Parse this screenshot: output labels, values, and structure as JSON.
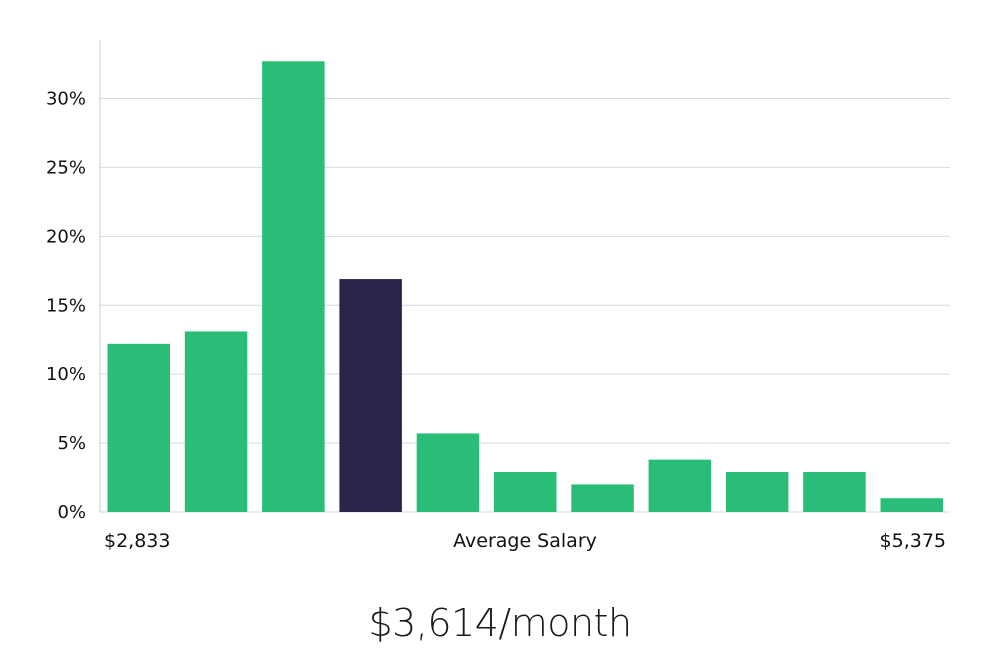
{
  "chart_data": {
    "type": "bar",
    "x_start_label": "$2,833",
    "x_center_label": "Average Salary",
    "x_end_label": "$5,375",
    "values": [
      12.2,
      13.1,
      32.7,
      16.9,
      5.7,
      2.9,
      2.0,
      3.8,
      2.9,
      2.9,
      1.0
    ],
    "highlight_index": 3,
    "ylim": [
      0,
      34
    ],
    "yticks": [
      "0%",
      "5%",
      "10%",
      "15%",
      "20%",
      "25%",
      "30%"
    ],
    "grid": true,
    "colors": {
      "bar": "#2abd78",
      "highlight": "#29264a",
      "grid": "#d9d9d9",
      "axis": "#cccccc"
    }
  },
  "summary": {
    "salary": "$3,614/month"
  }
}
